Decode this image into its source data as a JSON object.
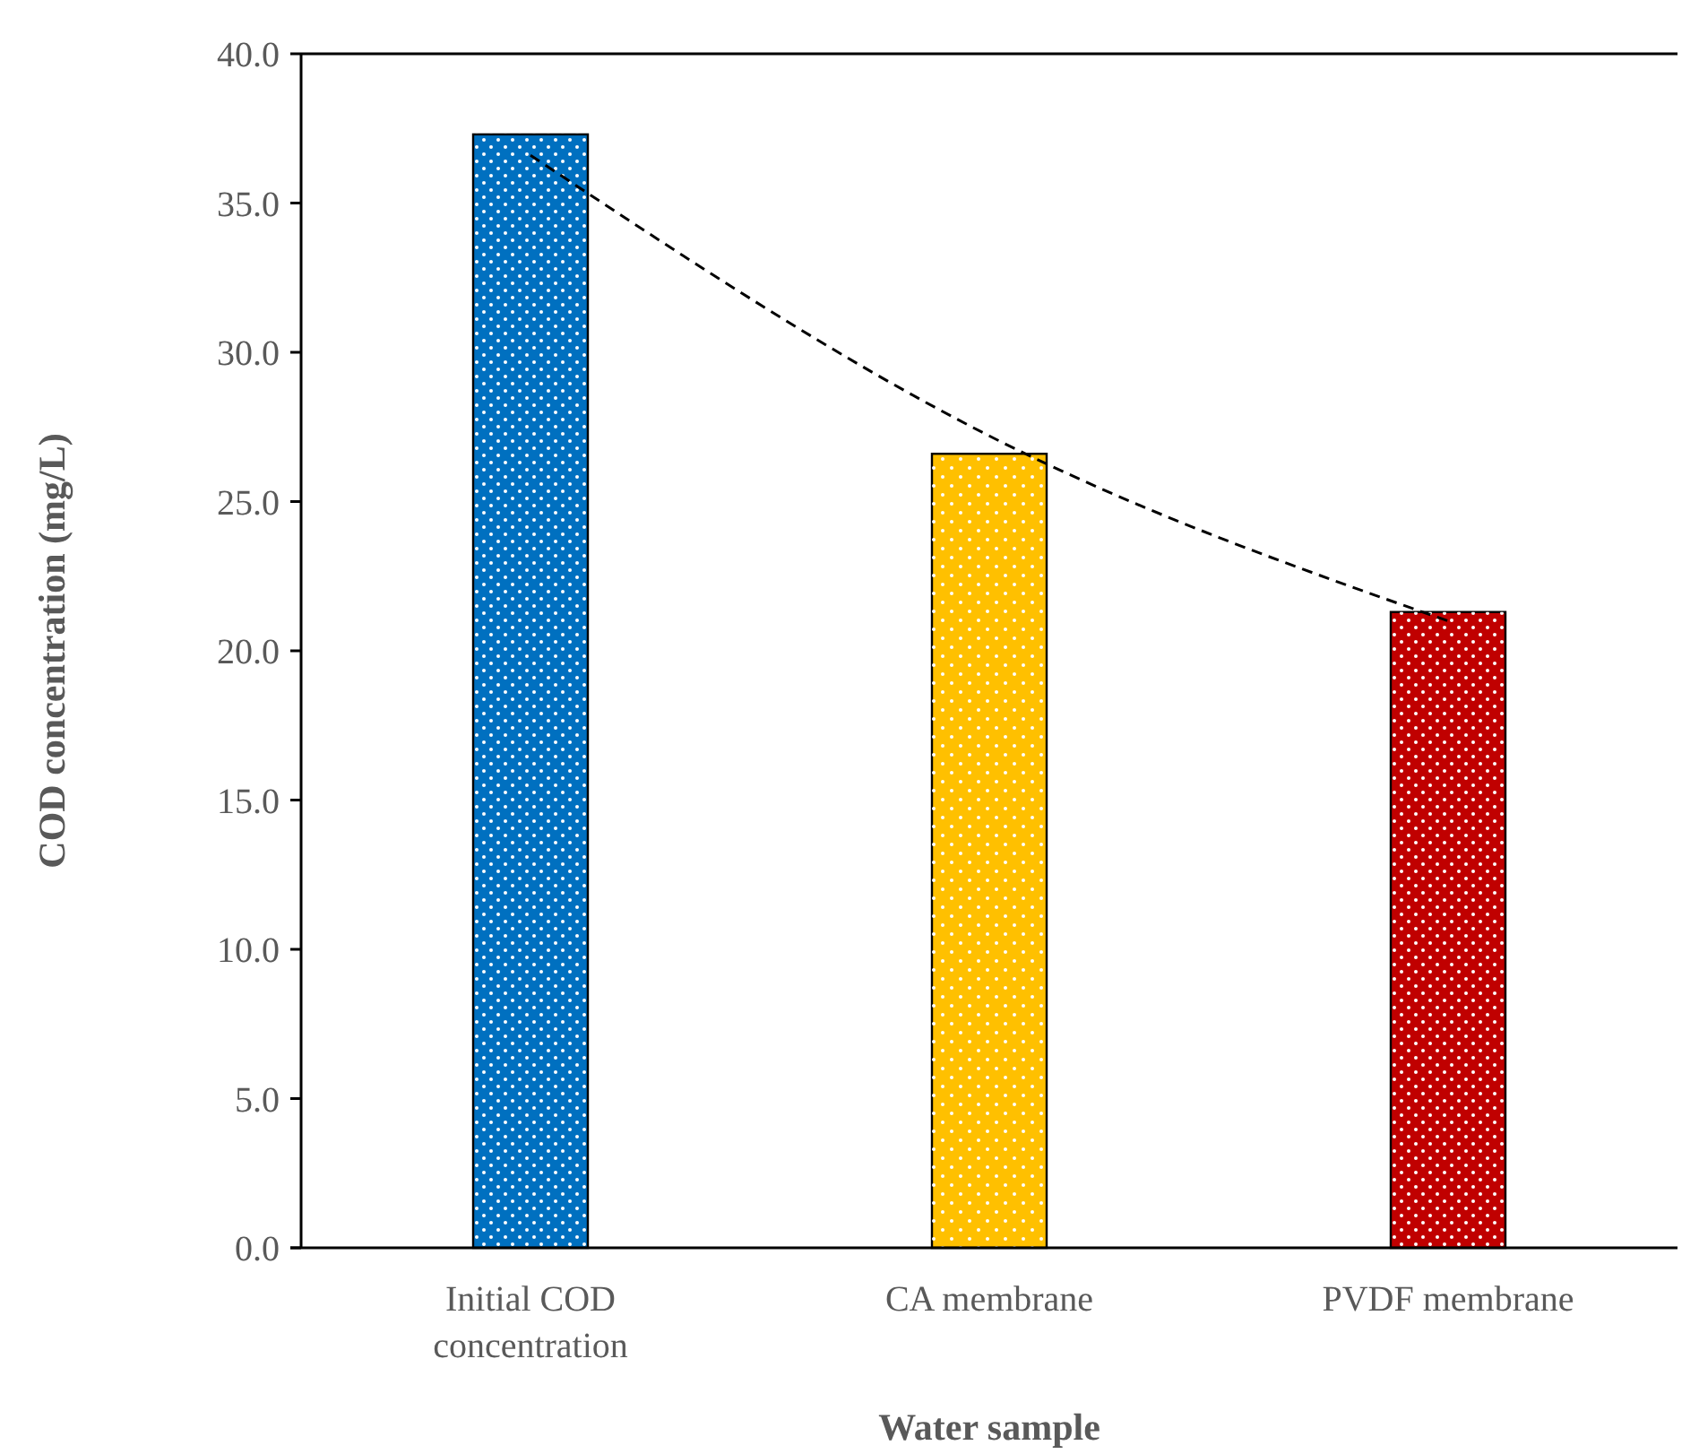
{
  "chart_data": {
    "type": "bar",
    "xlabel": "Water sample",
    "ylabel": "COD concentration (mg/L)",
    "categories": [
      "Initial COD concentration",
      "CA membrane",
      "PVDF membrane"
    ],
    "series": [
      {
        "colors": [
          "#0070c0",
          "#ffc000",
          "#c00000"
        ],
        "values": [
          37.3,
          26.6,
          21.3
        ]
      },
      {
        "type": "line",
        "color": "#000000",
        "line_style": "dashed",
        "marker": "none",
        "x": [
          "Initial COD concentration",
          "CA membrane",
          "PVDF membrane"
        ],
        "values": [
          36.6,
          27.2,
          21.0
        ]
      }
    ],
    "ylim": [
      0,
      40
    ],
    "yticks": [
      {
        "value": 0,
        "label": "0.0"
      },
      {
        "value": 5,
        "label": "5.0"
      },
      {
        "value": 10,
        "label": "10.0"
      },
      {
        "value": 15,
        "label": "15.0"
      },
      {
        "value": 20,
        "label": "20.0"
      },
      {
        "value": 25,
        "label": "25.0"
      },
      {
        "value": 30,
        "label": "30.0"
      },
      {
        "value": 35,
        "label": "35.0"
      },
      {
        "value": 40,
        "label": "40.0"
      }
    ],
    "grid": false
  }
}
